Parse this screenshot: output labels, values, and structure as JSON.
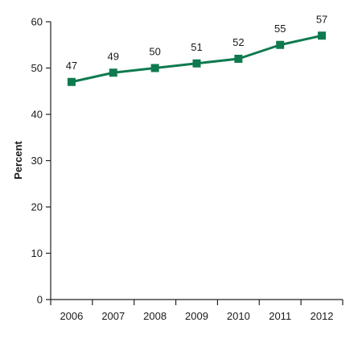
{
  "chart_data": {
    "type": "line",
    "title": "",
    "xlabel": "",
    "ylabel": "Percent",
    "ylim": [
      0,
      60
    ],
    "yticks": [
      0,
      10,
      20,
      30,
      40,
      50,
      60
    ],
    "x": [
      "2006",
      "2007",
      "2008",
      "2009",
      "2010",
      "2011",
      "2012"
    ],
    "series": [
      {
        "values": [
          47,
          49,
          50,
          51,
          52,
          55,
          57
        ],
        "color": "#0f7a4f",
        "marker": "square"
      }
    ],
    "data_labels": true,
    "grid": false,
    "legend": "none"
  }
}
